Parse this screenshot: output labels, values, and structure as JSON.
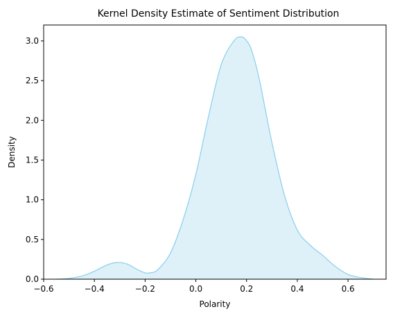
{
  "chart_data": {
    "type": "area",
    "title": "Kernel Density Estimate of Sentiment Distribution",
    "xlabel": "Polarity",
    "ylabel": "Density",
    "xlim": [
      -0.6,
      0.75
    ],
    "ylim": [
      0.0,
      3.2
    ],
    "xticks": [
      -0.6,
      -0.4,
      -0.2,
      0.0,
      0.2,
      0.4,
      0.6
    ],
    "xtick_labels": [
      "−0.6",
      "−0.4",
      "−0.2",
      "0.0",
      "0.2",
      "0.4",
      "0.6"
    ],
    "yticks": [
      0.0,
      0.5,
      1.0,
      1.5,
      2.0,
      2.5,
      3.0
    ],
    "ytick_labels": [
      "0.0",
      "0.5",
      "1.0",
      "1.5",
      "2.0",
      "2.5",
      "3.0"
    ],
    "grid": false,
    "legend": "none",
    "line_color": "#87ceeb",
    "fill_color": "#87ceeb",
    "fill_opacity": 0.28,
    "series": [
      {
        "x": [
          -0.55,
          -0.5,
          -0.45,
          -0.4,
          -0.35,
          -0.31,
          -0.27,
          -0.23,
          -0.2,
          -0.18,
          -0.15,
          -0.1,
          -0.05,
          0.0,
          0.05,
          0.1,
          0.15,
          0.18,
          0.2,
          0.22,
          0.25,
          0.3,
          0.35,
          0.4,
          0.45,
          0.5,
          0.55,
          0.6,
          0.65,
          0.7
        ],
        "y": [
          0.0,
          0.01,
          0.04,
          0.1,
          0.18,
          0.21,
          0.19,
          0.12,
          0.08,
          0.08,
          0.12,
          0.33,
          0.75,
          1.32,
          2.05,
          2.7,
          3.0,
          3.05,
          3.0,
          2.88,
          2.52,
          1.72,
          1.05,
          0.62,
          0.43,
          0.3,
          0.16,
          0.06,
          0.02,
          0.0
        ]
      }
    ]
  }
}
